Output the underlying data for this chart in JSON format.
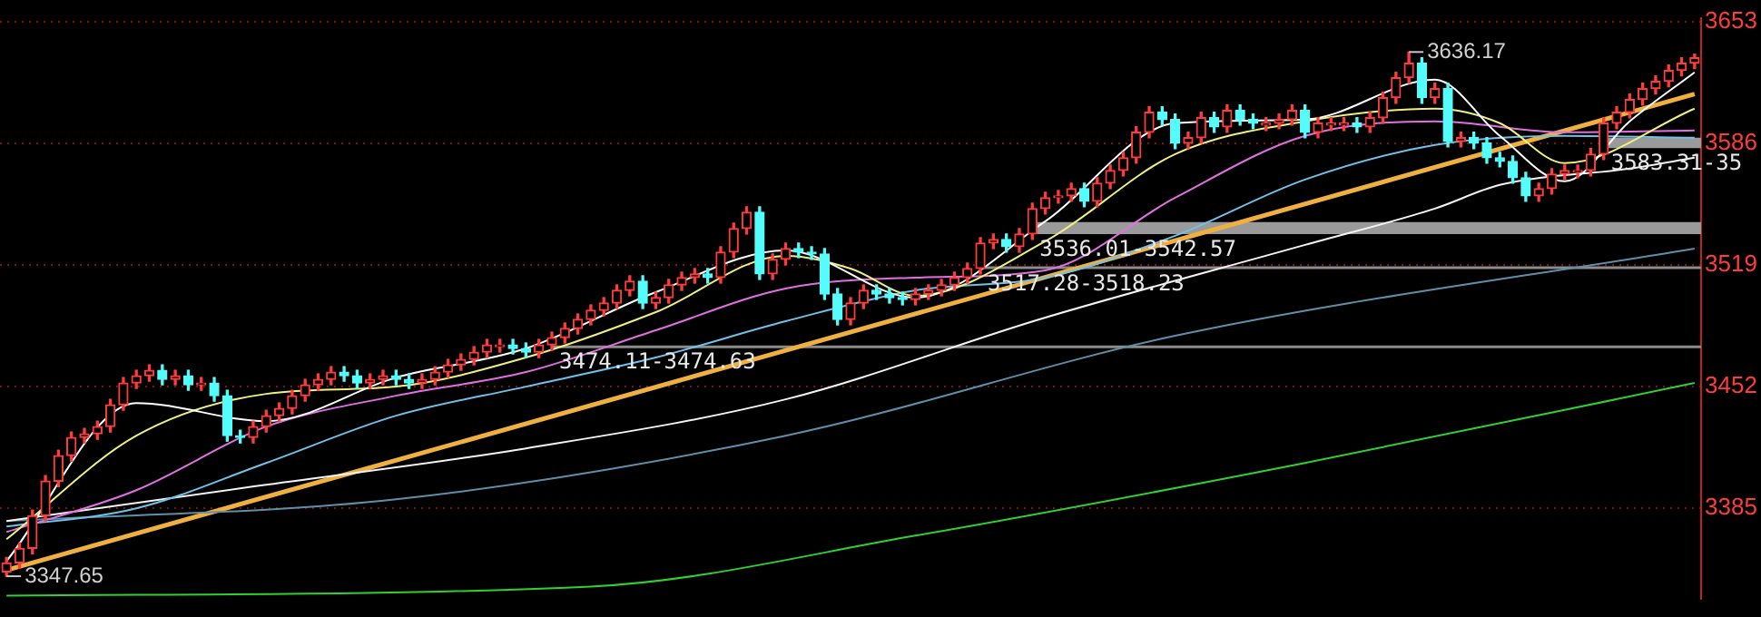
{
  "chart_data": {
    "type": "candlestick",
    "categories": [
      null,
      null,
      null,
      null,
      null,
      null,
      null,
      null,
      null,
      null,
      null,
      null,
      null,
      null,
      null,
      null,
      null,
      null,
      null,
      null,
      null,
      null,
      null,
      null,
      null,
      null,
      null,
      null,
      null,
      null,
      null,
      null,
      null,
      null,
      null,
      null,
      null,
      null,
      null,
      null,
      null,
      null,
      null,
      null,
      null,
      null,
      null,
      null,
      null,
      null,
      null,
      null,
      null,
      null,
      null,
      null,
      null,
      null,
      null,
      null,
      null,
      null,
      null,
      null,
      null,
      null,
      null,
      null,
      null,
      null,
      null,
      null,
      null,
      null,
      null,
      null,
      null,
      null,
      null,
      null,
      null,
      null,
      null,
      null,
      null,
      null,
      null,
      null,
      null,
      null,
      null,
      null,
      null,
      null,
      null,
      null,
      null,
      null,
      null,
      null,
      null,
      null,
      null,
      null,
      null,
      null,
      null,
      null,
      null,
      null,
      null,
      null,
      null,
      null,
      null,
      null,
      null,
      null,
      null,
      null,
      null,
      null,
      null,
      null,
      null,
      null,
      null,
      null,
      null,
      null,
      null
    ],
    "ohlc": [
      [
        3350,
        3358,
        3347.65,
        3355
      ],
      [
        3355,
        3366,
        3352,
        3363
      ],
      [
        3363,
        3384,
        3360,
        3381
      ],
      [
        3381,
        3403,
        3378,
        3400
      ],
      [
        3400,
        3417,
        3397,
        3414
      ],
      [
        3414,
        3427,
        3411,
        3424
      ],
      [
        3424,
        3429,
        3421,
        3426
      ],
      [
        3426,
        3433,
        3423,
        3430
      ],
      [
        3430,
        3445,
        3427,
        3442
      ],
      [
        3442,
        3457,
        3439,
        3454
      ],
      [
        3454,
        3461,
        3451,
        3458
      ],
      [
        3458,
        3464,
        3455,
        3461
      ],
      [
        3461,
        3464,
        3453,
        3456
      ],
      [
        3456,
        3461,
        3453,
        3458
      ],
      [
        3458,
        3461,
        3450,
        3453
      ],
      [
        3453,
        3457,
        3450,
        3454
      ],
      [
        3454,
        3457,
        3444,
        3447
      ],
      [
        3447,
        3450,
        3422,
        3425
      ],
      [
        3425,
        3428,
        3421,
        3424
      ],
      [
        3424,
        3433,
        3421,
        3430
      ],
      [
        3430,
        3439,
        3427,
        3436
      ],
      [
        3436,
        3443,
        3433,
        3440
      ],
      [
        3440,
        3450,
        3437,
        3447
      ],
      [
        3447,
        3456,
        3444,
        3453
      ],
      [
        3453,
        3459,
        3450,
        3456
      ],
      [
        3456,
        3463,
        3453,
        3460
      ],
      [
        3460,
        3463,
        3455,
        3458
      ],
      [
        3458,
        3461,
        3451,
        3454
      ],
      [
        3454,
        3459,
        3451,
        3456
      ],
      [
        3456,
        3461,
        3453,
        3458
      ],
      [
        3458,
        3461,
        3453,
        3456
      ],
      [
        3456,
        3459,
        3451,
        3454
      ],
      [
        3454,
        3459,
        3451,
        3456
      ],
      [
        3456,
        3463,
        3453,
        3460
      ],
      [
        3460,
        3467,
        3457,
        3464
      ],
      [
        3464,
        3470,
        3461,
        3467
      ],
      [
        3467,
        3474,
        3464,
        3471
      ],
      [
        3471,
        3478,
        3468,
        3475
      ],
      [
        3474,
        3478,
        3471,
        3475
      ],
      [
        3475,
        3478,
        3470,
        3473
      ],
      [
        3473,
        3476,
        3468,
        3471
      ],
      [
        3471,
        3478,
        3468,
        3475
      ],
      [
        3475,
        3482,
        3472,
        3479
      ],
      [
        3479,
        3487,
        3476,
        3484
      ],
      [
        3484,
        3492,
        3481,
        3489
      ],
      [
        3489,
        3497,
        3486,
        3494
      ],
      [
        3494,
        3501,
        3491,
        3498
      ],
      [
        3498,
        3508,
        3495,
        3505
      ],
      [
        3505,
        3513,
        3502,
        3510
      ],
      [
        3510,
        3513,
        3495,
        3498
      ],
      [
        3498,
        3504,
        3495,
        3501
      ],
      [
        3501,
        3511,
        3498,
        3508
      ],
      [
        3508,
        3515,
        3505,
        3512
      ],
      [
        3512,
        3517,
        3509,
        3514
      ],
      [
        3514,
        3517,
        3509,
        3512
      ],
      [
        3512,
        3529,
        3509,
        3526
      ],
      [
        3526,
        3542,
        3523,
        3539
      ],
      [
        3539,
        3551,
        3536,
        3548
      ],
      [
        3548,
        3551,
        3511,
        3514
      ],
      [
        3514,
        3525,
        3511,
        3522
      ],
      [
        3522,
        3531,
        3519,
        3528
      ],
      [
        3528,
        3531,
        3523,
        3526
      ],
      [
        3526,
        3529,
        3522,
        3525
      ],
      [
        3525,
        3528,
        3500,
        3503
      ],
      [
        3503,
        3506,
        3486,
        3489
      ],
      [
        3489,
        3501,
        3486,
        3498
      ],
      [
        3498,
        3508,
        3495,
        3505
      ],
      [
        3505,
        3508,
        3500,
        3503
      ],
      [
        3503,
        3506,
        3498,
        3501
      ],
      [
        3501,
        3504,
        3497,
        3500
      ],
      [
        3500,
        3506,
        3497,
        3503
      ],
      [
        3503,
        3508,
        3500,
        3505
      ],
      [
        3505,
        3511,
        3502,
        3508
      ],
      [
        3508,
        3515,
        3505,
        3512
      ],
      [
        3512,
        3520,
        3509,
        3517
      ],
      [
        3517,
        3534,
        3514,
        3531
      ],
      [
        3531,
        3536,
        3528,
        3533
      ],
      [
        3533,
        3536,
        3526,
        3529
      ],
      [
        3529,
        3539,
        3526,
        3536
      ],
      [
        3536,
        3553,
        3533,
        3550
      ],
      [
        3550,
        3559,
        3547,
        3556
      ],
      [
        3556,
        3560,
        3553,
        3557
      ],
      [
        3557,
        3564,
        3554,
        3561
      ],
      [
        3561,
        3564,
        3551,
        3554
      ],
      [
        3554,
        3567,
        3551,
        3564
      ],
      [
        3564,
        3574,
        3561,
        3571
      ],
      [
        3571,
        3581,
        3568,
        3578
      ],
      [
        3578,
        3595,
        3575,
        3592
      ],
      [
        3592,
        3606,
        3589,
        3603
      ],
      [
        3603,
        3606,
        3596,
        3599
      ],
      [
        3599,
        3602,
        3583,
        3586
      ],
      [
        3586,
        3592,
        3583,
        3589
      ],
      [
        3589,
        3603,
        3586,
        3600
      ],
      [
        3600,
        3603,
        3592,
        3595
      ],
      [
        3595,
        3607,
        3592,
        3604
      ],
      [
        3604,
        3607,
        3596,
        3599
      ],
      [
        3599,
        3602,
        3594,
        3597
      ],
      [
        3596,
        3600,
        3593,
        3597
      ],
      [
        3597,
        3602,
        3594,
        3599
      ],
      [
        3599,
        3607,
        3596,
        3604
      ],
      [
        3604,
        3607,
        3589,
        3592
      ],
      [
        3592,
        3600,
        3589,
        3597
      ],
      [
        3596,
        3600,
        3593,
        3597
      ],
      [
        3596,
        3600,
        3593,
        3597
      ],
      [
        3597,
        3600,
        3592,
        3595
      ],
      [
        3595,
        3603,
        3592,
        3600
      ],
      [
        3600,
        3614,
        3597,
        3611
      ],
      [
        3611,
        3625,
        3608,
        3622
      ],
      [
        3622,
        3636.17,
        3619,
        3630
      ],
      [
        3630,
        3633,
        3608,
        3611
      ],
      [
        3611,
        3619,
        3608,
        3616
      ],
      [
        3616,
        3619,
        3584,
        3587
      ],
      [
        3587,
        3592,
        3584,
        3589
      ],
      [
        3589,
        3592,
        3583,
        3586
      ],
      [
        3586,
        3589,
        3575,
        3578
      ],
      [
        3578,
        3581,
        3573,
        3576
      ],
      [
        3576,
        3579,
        3564,
        3567
      ],
      [
        3567,
        3570,
        3554,
        3557
      ],
      [
        3557,
        3564,
        3554,
        3561
      ],
      [
        3561,
        3572,
        3558,
        3569
      ],
      [
        3569,
        3574,
        3566,
        3571
      ],
      [
        3570,
        3574,
        3567,
        3571
      ],
      [
        3571,
        3583,
        3568,
        3580
      ],
      [
        3580,
        3600,
        3577,
        3597
      ],
      [
        3597,
        3606,
        3594,
        3603
      ],
      [
        3603,
        3613,
        3600,
        3610
      ],
      [
        3610,
        3619,
        3607,
        3616
      ],
      [
        3616,
        3623,
        3613,
        3620
      ],
      [
        3620,
        3629,
        3617,
        3626
      ],
      [
        3626,
        3633,
        3623,
        3630
      ],
      [
        3630,
        3635,
        3627,
        3633
      ]
    ],
    "colors": [
      "#ff3c3c",
      "#ff3c3c",
      "#ff3c3c",
      "#ff3c3c",
      "#ff3c3c",
      "#ff3c3c",
      "#ff3c3c",
      "#ff3c3c",
      "#ff3c3c",
      "#ff3c3c",
      "#ff3c3c",
      "#ff3c3c",
      "#54fcfc",
      "#ff3c3c",
      "#54fcfc",
      "#ff3c3c",
      "#54fcfc",
      "#54fcfc",
      "#54fcfc",
      "#ff3c3c",
      "#ff3c3c",
      "#ff3c3c",
      "#ff3c3c",
      "#ff3c3c",
      "#ff3c3c",
      "#ff3c3c",
      "#54fcfc",
      "#54fcfc",
      "#ff3c3c",
      "#ff3c3c",
      "#54fcfc",
      "#54fcfc",
      "#ff3c3c",
      "#ff3c3c",
      "#ff3c3c",
      "#ff3c3c",
      "#ff3c3c",
      "#ff3c3c",
      "#ff3c3c",
      "#54fcfc",
      "#54fcfc",
      "#ff3c3c",
      "#ff3c3c",
      "#ff3c3c",
      "#ff3c3c",
      "#ff3c3c",
      "#ff3c3c",
      "#ff3c3c",
      "#ff3c3c",
      "#54fcfc",
      "#ff3c3c",
      "#ff3c3c",
      "#ff3c3c",
      "#ff3c3c",
      "#54fcfc",
      "#ff3c3c",
      "#ff3c3c",
      "#ff3c3c",
      "#54fcfc",
      "#ff3c3c",
      "#ff3c3c",
      "#54fcfc",
      "#54fcfc",
      "#54fcfc",
      "#54fcfc",
      "#ff3c3c",
      "#ff3c3c",
      "#54fcfc",
      "#54fcfc",
      "#54fcfc",
      "#ff3c3c",
      "#ff3c3c",
      "#ff3c3c",
      "#ff3c3c",
      "#ff3c3c",
      "#ff3c3c",
      "#ff3c3c",
      "#54fcfc",
      "#ff3c3c",
      "#ff3c3c",
      "#ff3c3c",
      "#ff3c3c",
      "#ff3c3c",
      "#54fcfc",
      "#ff3c3c",
      "#ff3c3c",
      "#ff3c3c",
      "#ff3c3c",
      "#ff3c3c",
      "#54fcfc",
      "#54fcfc",
      "#ff3c3c",
      "#ff3c3c",
      "#54fcfc",
      "#ff3c3c",
      "#54fcfc",
      "#54fcfc",
      "#ff3c3c",
      "#ff3c3c",
      "#ff3c3c",
      "#54fcfc",
      "#ff3c3c",
      "#ff3c3c",
      "#ff3c3c",
      "#54fcfc",
      "#ff3c3c",
      "#ff3c3c",
      "#ff3c3c",
      "#ff3c3c",
      "#54fcfc",
      "#ff3c3c",
      "#54fcfc",
      "#ff3c3c",
      "#54fcfc",
      "#54fcfc",
      "#54fcfc",
      "#54fcfc",
      "#54fcfc",
      "#ff3c3c",
      "#ff3c3c",
      "#ff3c3c",
      "#ff3c3c",
      "#ff3c3c",
      "#ff3c3c",
      "#ff3c3c",
      "#ff3c3c",
      "#ff3c3c",
      "#ff3c3c",
      "#ff3c3c",
      "#ff3c3c",
      "#ff3c3c"
    ],
    "series": [
      {
        "type": "line",
        "color": "#ffffff",
        "values": [
          3356,
          null,
          null,
          null,
          null,
          null,
          null,
          null,
          null,
          null,
          3443,
          null,
          null,
          null,
          null,
          null,
          null,
          null,
          null,
          null,
          3433,
          null,
          null,
          null,
          null,
          null,
          null,
          null,
          null,
          null,
          3457,
          null,
          null,
          null,
          null,
          null,
          null,
          null,
          null,
          null,
          3473,
          null,
          null,
          null,
          null,
          null,
          null,
          null,
          null,
          null,
          3504,
          null,
          null,
          null,
          null,
          null,
          null,
          null,
          null,
          null,
          3527,
          null,
          null,
          null,
          null,
          null,
          null,
          null,
          null,
          null,
          3501,
          null,
          null,
          null,
          null,
          null,
          null,
          null,
          null,
          null,
          3543,
          null,
          null,
          null,
          null,
          null,
          null,
          null,
          null,
          null,
          3597,
          null,
          null,
          null,
          null,
          null,
          null,
          null,
          null,
          null,
          3599,
          null,
          null,
          null,
          null,
          null,
          null,
          null,
          null,
          null,
          3621,
          null,
          null,
          null,
          null,
          3590,
          null,
          null,
          null,
          null,
          3565,
          null,
          null,
          null,
          null,
          3598,
          null,
          null,
          null,
          null,
          3625
        ]
      },
      {
        "type": "line",
        "color": "#f0f080",
        "values": [
          3368,
          null,
          null,
          null,
          null,
          null,
          null,
          null,
          null,
          null,
          3425,
          null,
          null,
          null,
          null,
          null,
          null,
          null,
          null,
          null,
          3448,
          null,
          null,
          null,
          null,
          null,
          null,
          null,
          null,
          null,
          3452,
          null,
          null,
          null,
          null,
          null,
          null,
          null,
          null,
          null,
          3468,
          null,
          null,
          null,
          null,
          null,
          null,
          null,
          null,
          null,
          3493,
          null,
          null,
          null,
          null,
          null,
          null,
          null,
          null,
          null,
          3524,
          null,
          null,
          null,
          null,
          3517,
          null,
          null,
          null,
          null,
          3502,
          null,
          null,
          null,
          null,
          null,
          null,
          null,
          null,
          null,
          3532,
          null,
          null,
          null,
          null,
          null,
          null,
          null,
          null,
          null,
          3580,
          null,
          null,
          null,
          null,
          null,
          null,
          null,
          null,
          null,
          3598,
          null,
          null,
          null,
          null,
          null,
          null,
          null,
          null,
          null,
          3605,
          null,
          null,
          null,
          null,
          3597,
          null,
          null,
          null,
          null,
          3575,
          null,
          null,
          null,
          null,
          null,
          null,
          null,
          null,
          null,
          3605
        ]
      },
      {
        "type": "line",
        "color": "#e070e0",
        "values": [
          3372,
          null,
          null,
          null,
          null,
          null,
          null,
          null,
          null,
          null,
          3395,
          null,
          null,
          null,
          null,
          null,
          null,
          null,
          null,
          null,
          3430,
          null,
          null,
          null,
          null,
          null,
          null,
          null,
          null,
          null,
          3447,
          null,
          null,
          null,
          null,
          null,
          null,
          null,
          null,
          null,
          3460,
          null,
          null,
          null,
          null,
          null,
          null,
          null,
          null,
          null,
          3483,
          null,
          null,
          null,
          null,
          null,
          null,
          null,
          null,
          null,
          3506,
          null,
          null,
          null,
          null,
          null,
          null,
          null,
          null,
          null,
          3512,
          null,
          null,
          null,
          null,
          null,
          null,
          null,
          null,
          null,
          3516,
          null,
          null,
          null,
          null,
          null,
          null,
          null,
          null,
          null,
          3556,
          null,
          null,
          null,
          null,
          null,
          null,
          null,
          null,
          null,
          3590,
          null,
          null,
          null,
          null,
          null,
          null,
          null,
          null,
          null,
          3598,
          null,
          null,
          null,
          null,
          null,
          null,
          null,
          null,
          null,
          3592,
          null,
          null,
          null,
          null,
          null,
          null,
          null,
          null,
          null,
          3593
        ]
      },
      {
        "type": "line",
        "color": "#70c0e8",
        "values": [
          3375,
          null,
          null,
          null,
          null,
          null,
          null,
          null,
          null,
          null,
          3385,
          null,
          null,
          null,
          null,
          null,
          null,
          null,
          null,
          null,
          3410,
          null,
          null,
          null,
          null,
          null,
          null,
          null,
          null,
          null,
          3436,
          null,
          null,
          null,
          null,
          null,
          null,
          null,
          null,
          null,
          3452,
          null,
          null,
          null,
          null,
          null,
          null,
          null,
          null,
          null,
          3468,
          null,
          null,
          null,
          null,
          null,
          null,
          null,
          null,
          null,
          3488,
          null,
          null,
          null,
          null,
          null,
          null,
          null,
          null,
          null,
          3505,
          null,
          null,
          null,
          null,
          null,
          null,
          null,
          null,
          null,
          3512,
          null,
          null,
          null,
          null,
          null,
          null,
          null,
          null,
          null,
          3535,
          null,
          null,
          null,
          null,
          null,
          null,
          null,
          null,
          null,
          3566,
          null,
          null,
          null,
          null,
          null,
          null,
          null,
          null,
          null,
          3585,
          null,
          null,
          null,
          null,
          null,
          null,
          null,
          null,
          null,
          3590,
          null,
          null,
          null,
          null,
          null,
          null,
          null,
          null,
          null,
          3589
        ]
      },
      {
        "type": "line",
        "color": "#f4f4f4",
        "values": [
          3378,
          null,
          null,
          null,
          null,
          null,
          null,
          null,
          null,
          null,
          null,
          null,
          null,
          null,
          null,
          null,
          null,
          null,
          null,
          null,
          3398,
          null,
          null,
          null,
          null,
          null,
          null,
          null,
          null,
          null,
          null,
          null,
          null,
          null,
          null,
          null,
          null,
          null,
          null,
          null,
          3418,
          null,
          null,
          null,
          null,
          null,
          null,
          null,
          null,
          null,
          null,
          null,
          null,
          null,
          null,
          null,
          null,
          null,
          null,
          null,
          3445,
          null,
          null,
          null,
          null,
          null,
          null,
          null,
          null,
          null,
          null,
          null,
          null,
          null,
          null,
          null,
          null,
          null,
          null,
          null,
          3490,
          null,
          null,
          null,
          null,
          null,
          null,
          null,
          null,
          null,
          null,
          null,
          null,
          null,
          null,
          null,
          null,
          null,
          null,
          null,
          3530,
          null,
          null,
          null,
          null,
          null,
          null,
          null,
          null,
          null,
          3550,
          null,
          null,
          null,
          null,
          3563,
          null,
          null,
          null,
          null,
          null,
          null,
          null,
          null,
          null,
          3572,
          null,
          null,
          null,
          null,
          3578
        ]
      },
      {
        "type": "line",
        "color": "#5f8fa8",
        "values": [
          3378,
          null,
          null,
          null,
          null,
          null,
          null,
          null,
          null,
          null,
          null,
          null,
          null,
          null,
          null,
          null,
          null,
          null,
          null,
          null,
          null,
          null,
          null,
          null,
          null,
          null,
          null,
          null,
          null,
          null,
          3390,
          null,
          null,
          null,
          null,
          null,
          null,
          null,
          null,
          null,
          null,
          null,
          null,
          null,
          null,
          null,
          null,
          null,
          null,
          null,
          null,
          null,
          null,
          null,
          null,
          null,
          null,
          null,
          null,
          null,
          3425,
          null,
          null,
          null,
          null,
          null,
          null,
          null,
          null,
          null,
          null,
          null,
          null,
          null,
          null,
          null,
          null,
          null,
          null,
          null,
          null,
          null,
          null,
          null,
          null,
          null,
          null,
          null,
          null,
          null,
          3480,
          null,
          null,
          null,
          null,
          null,
          null,
          null,
          null,
          null,
          null,
          null,
          null,
          null,
          null,
          null,
          null,
          null,
          null,
          null,
          null,
          null,
          null,
          null,
          null,
          null,
          null,
          null,
          null,
          null,
          null,
          null,
          null,
          null,
          null,
          null,
          null,
          null,
          null,
          null,
          3528
        ]
      },
      {
        "type": "line",
        "color": "#30d030",
        "values": [
          3337,
          null,
          null,
          null,
          null,
          null,
          null,
          null,
          null,
          null,
          null,
          null,
          null,
          null,
          null,
          null,
          null,
          null,
          null,
          null,
          null,
          null,
          null,
          null,
          null,
          null,
          null,
          null,
          null,
          null,
          null,
          null,
          null,
          null,
          null,
          null,
          null,
          null,
          null,
          null,
          null,
          null,
          null,
          null,
          null,
          3342,
          null,
          null,
          null,
          null,
          null,
          null,
          null,
          null,
          null,
          null,
          null,
          null,
          null,
          null,
          null,
          null,
          null,
          null,
          null,
          null,
          null,
          null,
          null,
          null,
          3370,
          null,
          null,
          null,
          null,
          null,
          null,
          null,
          null,
          null,
          null,
          null,
          null,
          null,
          null,
          null,
          null,
          null,
          null,
          null,
          null,
          null,
          null,
          null,
          null,
          null,
          null,
          null,
          null,
          null,
          3410,
          null,
          null,
          null,
          null,
          null,
          null,
          null,
          null,
          null,
          null,
          null,
          null,
          null,
          null,
          null,
          null,
          null,
          null,
          null,
          null,
          null,
          null,
          null,
          null,
          null,
          null,
          null,
          null,
          null,
          3454
        ]
      },
      {
        "type": "line",
        "color": "#f0b040",
        "values": [
          3351,
          null,
          null,
          null,
          null,
          null,
          null,
          null,
          null,
          null,
          null,
          null,
          null,
          null,
          null,
          null,
          null,
          null,
          null,
          null,
          null,
          null,
          null,
          null,
          null,
          null,
          null,
          null,
          null,
          null,
          null,
          null,
          null,
          null,
          null,
          null,
          null,
          null,
          null,
          null,
          null,
          null,
          null,
          null,
          null,
          null,
          null,
          null,
          null,
          null,
          null,
          null,
          null,
          null,
          null,
          null,
          null,
          null,
          null,
          null,
          null,
          null,
          null,
          null,
          null,
          null,
          null,
          null,
          null,
          null,
          null,
          null,
          null,
          null,
          null,
          null,
          null,
          null,
          null,
          null,
          null,
          null,
          null,
          null,
          null,
          null,
          null,
          null,
          null,
          null,
          null,
          null,
          null,
          null,
          null,
          null,
          null,
          null,
          null,
          null,
          null,
          null,
          null,
          null,
          null,
          null,
          null,
          null,
          null,
          null,
          null,
          null,
          null,
          null,
          null,
          null,
          null,
          null,
          null,
          null,
          null,
          null,
          null,
          null,
          null,
          null,
          null,
          null,
          null,
          null,
          3613
        ]
      }
    ],
    "bands": [
      {
        "axis": "y",
        "from": 3474.11,
        "to": 3474.63,
        "label": "3474.11-3474.63",
        "color": "#8c8c8c"
      },
      {
        "axis": "y",
        "from": 3517.28,
        "to": 3518.23,
        "label": "3517.28-3518.23",
        "color": "#8c8c8c"
      },
      {
        "axis": "y",
        "from": 3536.01,
        "to": 3542.57,
        "label": "3536.01-3542.57",
        "color": "#9a9a9a"
      },
      {
        "axis": "y",
        "from": 3583.31,
        "to": 3589,
        "label": "3583.31-35",
        "color": "#9a9a9a"
      }
    ],
    "annotations": [
      "3636.17",
      "3347.65"
    ],
    "ylim": [
      3335,
      3655
    ],
    "yticks": [
      3385,
      3452,
      3519,
      3586,
      3653
    ],
    "grid": "y",
    "legend": false
  }
}
